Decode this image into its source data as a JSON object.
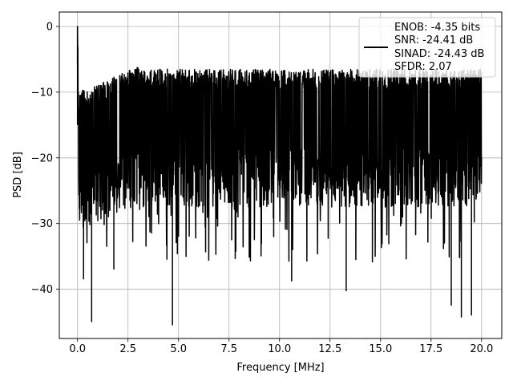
{
  "chart_data": {
    "type": "line",
    "title": "",
    "xlabel": "Frequency [MHz]",
    "ylabel": "PSD [dB]",
    "xlim": [
      -0.9,
      21.0
    ],
    "ylim": [
      -47.5,
      2.2
    ],
    "x_ticks": [
      0.0,
      2.5,
      5.0,
      7.5,
      10.0,
      12.5,
      15.0,
      17.5,
      20.0
    ],
    "x_tick_labels": [
      "0.0",
      "2.5",
      "5.0",
      "7.5",
      "10.0",
      "12.5",
      "15.0",
      "17.5",
      "20.0"
    ],
    "y_ticks": [
      0,
      -10,
      -20,
      -30,
      -40
    ],
    "y_tick_labels": [
      "0",
      "−10",
      "−20",
      "−30",
      "−40"
    ],
    "grid": true,
    "legend_position": "upper-right",
    "legend_lines": [
      "ENOB: -4.35 bits",
      "SNR: -24.41 dB",
      "SINAD: -24.43 dB",
      "SFDR: 2.07"
    ],
    "series": [
      {
        "color": "#000000",
        "x_range": [
          0.0,
          20.0
        ],
        "points": 2048,
        "pattern": "dense noise floor approx. -12 to -25 dB with deep nulls",
        "peak": {
          "x": 0.0,
          "y": 0.0
        },
        "notable_minima": [
          {
            "x": 0.3,
            "y": -38.5
          },
          {
            "x": 0.7,
            "y": -45.0
          },
          {
            "x": 1.8,
            "y": -37.0
          },
          {
            "x": 4.7,
            "y": -45.5
          },
          {
            "x": 10.6,
            "y": -38.8
          },
          {
            "x": 13.3,
            "y": -40.3
          },
          {
            "x": 18.5,
            "y": -42.5
          },
          {
            "x": 19.0,
            "y": -44.3
          },
          {
            "x": 19.5,
            "y": -44.0
          }
        ]
      }
    ]
  }
}
